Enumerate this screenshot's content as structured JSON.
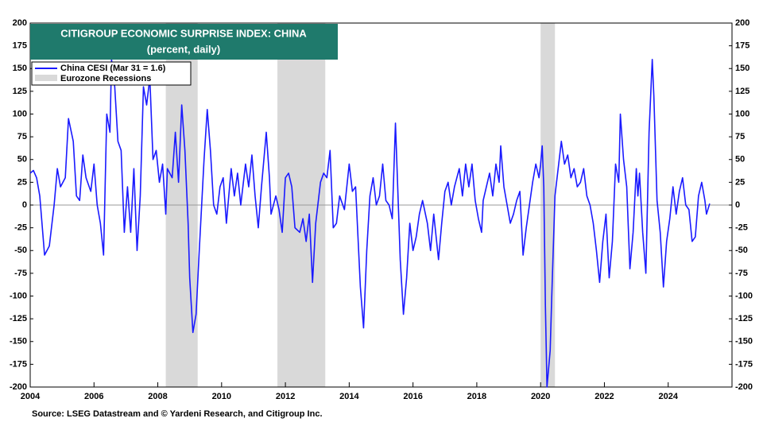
{
  "chart_data": {
    "type": "line",
    "title": "CITIGROUP ECONOMIC SURPRISE INDEX: CHINA",
    "subtitle": "(percent, daily)",
    "source": "Source: LSEG Datastream and © Yardeni Research, and Citigroup Inc.",
    "xlim": [
      2004,
      2026
    ],
    "xticks": [
      2004,
      2006,
      2008,
      2010,
      2012,
      2014,
      2016,
      2018,
      2020,
      2022,
      2024
    ],
    "ylim": [
      -200,
      200
    ],
    "yticks": [
      -200,
      -175,
      -150,
      -125,
      -100,
      -75,
      -50,
      -25,
      0,
      25,
      50,
      75,
      100,
      125,
      150,
      175,
      200
    ],
    "shaded_periods": {
      "name": "Eurozone Recessions",
      "color": "#d9d9d9",
      "ranges": [
        [
          2008.25,
          2009.25
        ],
        [
          2011.75,
          2013.25
        ],
        [
          2020.0,
          2020.45
        ]
      ]
    },
    "x": [
      2004.0,
      2004.1,
      2004.2,
      2004.3,
      2004.45,
      2004.6,
      2004.75,
      2004.85,
      2004.95,
      2005.1,
      2005.2,
      2005.35,
      2005.45,
      2005.55,
      2005.65,
      2005.75,
      2005.9,
      2006.0,
      2006.1,
      2006.2,
      2006.3,
      2006.4,
      2006.5,
      2006.55,
      2006.65,
      2006.75,
      2006.85,
      2006.95,
      2007.05,
      2007.15,
      2007.25,
      2007.35,
      2007.45,
      2007.55,
      2007.65,
      2007.75,
      2007.85,
      2007.95,
      2008.05,
      2008.15,
      2008.25,
      2008.3,
      2008.45,
      2008.55,
      2008.65,
      2008.75,
      2008.85,
      2008.95,
      2009.0,
      2009.1,
      2009.2,
      2009.3,
      2009.45,
      2009.55,
      2009.65,
      2009.75,
      2009.85,
      2009.95,
      2010.05,
      2010.15,
      2010.3,
      2010.4,
      2010.5,
      2010.6,
      2010.75,
      2010.85,
      2010.95,
      2011.05,
      2011.15,
      2011.25,
      2011.4,
      2011.5,
      2011.55,
      2011.7,
      2011.8,
      2011.9,
      2012.0,
      2012.1,
      2012.2,
      2012.3,
      2012.45,
      2012.55,
      2012.65,
      2012.75,
      2012.85,
      2012.95,
      2013.1,
      2013.2,
      2013.3,
      2013.4,
      2013.5,
      2013.6,
      2013.7,
      2013.85,
      2014.0,
      2014.1,
      2014.2,
      2014.35,
      2014.45,
      2014.55,
      2014.65,
      2014.75,
      2014.85,
      2014.95,
      2015.05,
      2015.15,
      2015.25,
      2015.35,
      2015.45,
      2015.5,
      2015.6,
      2015.7,
      2015.8,
      2015.9,
      2016.0,
      2016.1,
      2016.2,
      2016.3,
      2016.45,
      2016.55,
      2016.65,
      2016.8,
      2016.9,
      2017.0,
      2017.1,
      2017.2,
      2017.3,
      2017.45,
      2017.55,
      2017.65,
      2017.75,
      2017.85,
      2017.95,
      2018.05,
      2018.15,
      2018.2,
      2018.3,
      2018.4,
      2018.5,
      2018.6,
      2018.7,
      2018.75,
      2018.85,
      2018.95,
      2019.05,
      2019.15,
      2019.25,
      2019.35,
      2019.45,
      2019.55,
      2019.65,
      2019.75,
      2019.85,
      2019.95,
      2020.0,
      2020.05,
      2020.1,
      2020.15,
      2020.2,
      2020.3,
      2020.35,
      2020.45,
      2020.55,
      2020.65,
      2020.75,
      2020.85,
      2020.95,
      2021.05,
      2021.15,
      2021.25,
      2021.35,
      2021.45,
      2021.55,
      2021.65,
      2021.75,
      2021.85,
      2021.95,
      2022.05,
      2022.15,
      2022.25,
      2022.35,
      2022.45,
      2022.5,
      2022.6,
      2022.7,
      2022.8,
      2022.9,
      2023.0,
      2023.05,
      2023.1,
      2023.2,
      2023.3,
      2023.4,
      2023.5,
      2023.55,
      2023.65,
      2023.75,
      2023.85,
      2023.95,
      2024.05,
      2024.15,
      2024.25,
      2024.35,
      2024.45,
      2024.55,
      2024.65,
      2024.75,
      2024.85,
      2024.95,
      2025.05,
      2025.15,
      2025.2,
      2025.3
    ],
    "series": [
      {
        "name": "China CESI (Mar 31 = 1.6)",
        "color": "#1a1aff",
        "values": [
          35,
          38,
          30,
          10,
          -55,
          -45,
          0,
          40,
          20,
          30,
          95,
          70,
          10,
          5,
          55,
          30,
          15,
          45,
          0,
          -20,
          -55,
          100,
          80,
          160,
          130,
          70,
          60,
          -30,
          20,
          -30,
          40,
          -50,
          10,
          130,
          110,
          140,
          50,
          60,
          25,
          45,
          -10,
          40,
          30,
          80,
          25,
          110,
          60,
          -20,
          -80,
          -140,
          -120,
          -50,
          50,
          105,
          60,
          0,
          -10,
          20,
          30,
          -20,
          40,
          10,
          35,
          0,
          45,
          20,
          55,
          10,
          -25,
          20,
          80,
          30,
          -10,
          10,
          -5,
          -30,
          30,
          35,
          20,
          -25,
          -30,
          -15,
          -40,
          -10,
          -85,
          -20,
          25,
          35,
          30,
          60,
          -25,
          -20,
          10,
          -5,
          45,
          15,
          20,
          -90,
          -135,
          -50,
          10,
          30,
          0,
          10,
          45,
          5,
          0,
          -15,
          90,
          40,
          -60,
          -120,
          -80,
          -20,
          -50,
          -35,
          -10,
          5,
          -20,
          -50,
          -10,
          -60,
          -20,
          15,
          25,
          0,
          20,
          40,
          10,
          45,
          20,
          45,
          5,
          -15,
          -30,
          5,
          20,
          35,
          10,
          45,
          25,
          65,
          20,
          0,
          -20,
          -10,
          5,
          15,
          -55,
          -25,
          0,
          25,
          45,
          30,
          45,
          65,
          20,
          -110,
          -200,
          -160,
          -100,
          10,
          40,
          70,
          45,
          55,
          30,
          40,
          20,
          25,
          40,
          10,
          0,
          -20,
          -50,
          -85,
          -40,
          -10,
          -80,
          -40,
          45,
          25,
          100,
          50,
          20,
          -70,
          -30,
          40,
          10,
          35,
          -30,
          -75,
          80,
          160,
          120,
          5,
          -30,
          -90,
          -40,
          -15,
          20,
          -10,
          15,
          30,
          0,
          -5,
          -40,
          -35,
          10,
          25,
          5,
          -10,
          1.6
        ]
      }
    ]
  }
}
